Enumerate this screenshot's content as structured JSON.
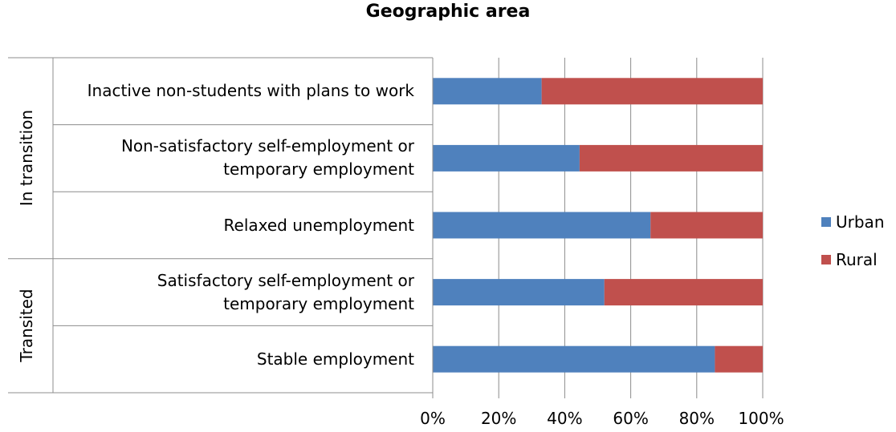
{
  "chart_data": {
    "type": "bar",
    "orientation": "horizontal",
    "stacked": "percent",
    "title": "Geographic area",
    "categories": [
      "Inactive non-students with plans to work",
      "Non-satisfactory self-employment or temporary employment",
      "Relaxed unemployment",
      "Satisfactory self-employment or temporary employment",
      "Stable employment"
    ],
    "category_lines": [
      [
        "Inactive non-students with plans to work"
      ],
      [
        "Non-satisfactory self-employment or",
        "temporary employment"
      ],
      [
        "Relaxed unemployment"
      ],
      [
        "Satisfactory self-employment or",
        "temporary employment"
      ],
      [
        "Stable employment"
      ]
    ],
    "groups": [
      {
        "label": "In transition",
        "categories": [
          0,
          1,
          2
        ]
      },
      {
        "label": "Transited",
        "categories": [
          3,
          4
        ]
      }
    ],
    "series": [
      {
        "name": "Urban",
        "color": "#4F81BD",
        "values": [
          33,
          44.5,
          66,
          52,
          85.5
        ]
      },
      {
        "name": "Rural",
        "color": "#C0504D",
        "values": [
          67,
          55.5,
          34,
          48,
          14.5
        ]
      }
    ],
    "xlim": [
      0,
      100
    ],
    "xticks": [
      "0%",
      "20%",
      "40%",
      "60%",
      "80%",
      "100%"
    ],
    "grid": true,
    "legend_position": "right"
  }
}
